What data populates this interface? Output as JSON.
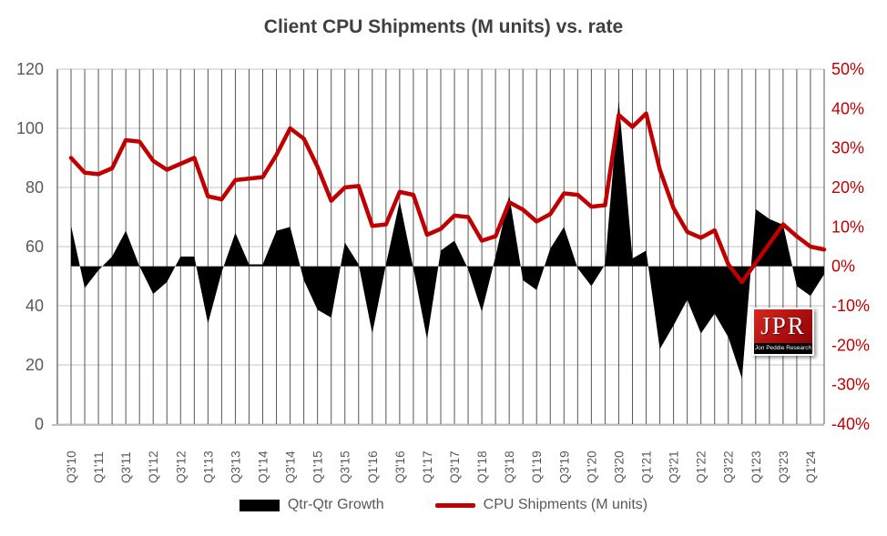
{
  "title": "Client CPU Shipments (M units) vs. rate",
  "colors": {
    "line": "#C00000",
    "area": "#000000",
    "title_text": "#404040",
    "left_axis_text": "#595959",
    "right_axis_text": "#C00000",
    "x_axis_text": "#595959",
    "h_gridline": "#D9D9D9",
    "v_gridline": "#555555",
    "axis_line": "#BFBFBF",
    "background": "#FFFFFF"
  },
  "legend": {
    "items": [
      {
        "label": "Qtr-Qtr Growth",
        "swatch": "black-area-swatch"
      },
      {
        "label": "CPU Shipments (M units)",
        "swatch": "red-line-swatch"
      }
    ]
  },
  "logo": {
    "text": "JPR",
    "subtext": "Jon Peddie Research"
  },
  "chart_data": {
    "type": "combo",
    "title": "Client CPU Shipments (M units) vs. rate",
    "categories": [
      "Q3'10",
      "Q4'10",
      "Q1'11",
      "Q2'11",
      "Q3'11",
      "Q4'11",
      "Q1'12",
      "Q2'12",
      "Q3'12",
      "Q4'12",
      "Q1'13",
      "Q2'13",
      "Q3'13",
      "Q4'13",
      "Q1'14",
      "Q2'14",
      "Q3'14",
      "Q4'14",
      "Q1'15",
      "Q2'15",
      "Q3'15",
      "Q4'15",
      "Q1'16",
      "Q2'16",
      "Q3'16",
      "Q4'16",
      "Q1'17",
      "Q2'17",
      "Q3'17",
      "Q4'17",
      "Q1'18",
      "Q2'18",
      "Q3'18",
      "Q4'18",
      "Q1'19",
      "Q2'19",
      "Q3'19",
      "Q4'19",
      "Q1'20",
      "Q2'20",
      "Q3'20",
      "Q4'20",
      "Q1'21",
      "Q2'21",
      "Q3'21",
      "Q4'21",
      "Q1'22",
      "Q2'22",
      "Q3'22",
      "Q4'22",
      "Q1'23",
      "Q2'23",
      "Q3'23",
      "Q4'23",
      "Q1'24",
      "Q2'24"
    ],
    "x_tick_labels": [
      "Q3'10",
      "Q1'11",
      "Q3'11",
      "Q1'12",
      "Q3'12",
      "Q1'13",
      "Q3'13",
      "Q1'14",
      "Q3'14",
      "Q1'15",
      "Q3'15",
      "Q1'16",
      "Q3'16",
      "Q1'17",
      "Q3'17",
      "Q1'18",
      "Q3'18",
      "Q1'19",
      "Q3'19",
      "Q1'20",
      "Q3'20",
      "Q1'21",
      "Q3'21",
      "Q1'22",
      "Q3'22",
      "Q1'23",
      "Q3'23",
      "Q1'24"
    ],
    "x_tick_every": 2,
    "series": [
      {
        "name": "Qtr-Qtr Growth",
        "type": "area",
        "axis": "right",
        "color": "#000000",
        "baseline": 0,
        "values": [
          10.3,
          -5.5,
          -1,
          2.5,
          9,
          0,
          -7,
          -4,
          2.5,
          2.5,
          -14.5,
          -1.5,
          8.5,
          0.5,
          0.5,
          9,
          10,
          -3.5,
          -11,
          -13,
          6,
          0.5,
          -17,
          0.5,
          16.5,
          -0.5,
          -18.5,
          4,
          6.5,
          -0.7,
          -11.5,
          2.5,
          18,
          -3.5,
          -6,
          4.5,
          10,
          -0.5,
          -5,
          0.5,
          42,
          2,
          4,
          -21,
          -15,
          -8.5,
          -17,
          -12,
          -18,
          -28.5,
          14.5,
          12,
          10.5,
          -5,
          -7.5,
          -2
        ]
      },
      {
        "name": "CPU Shipments (M units)",
        "type": "line",
        "axis": "left",
        "color": "#C00000",
        "values": [
          90,
          85,
          84.5,
          86.5,
          96,
          95.5,
          89,
          86,
          88,
          90,
          77,
          76,
          82.5,
          83,
          83.5,
          91,
          100,
          96.5,
          87,
          75.5,
          80,
          80.5,
          67,
          67.5,
          78.5,
          77.5,
          64,
          66,
          70.5,
          70,
          62,
          63.5,
          75,
          72.5,
          68.5,
          71,
          78,
          77.5,
          73.5,
          74,
          104.5,
          100.5,
          105,
          86,
          73,
          65,
          63,
          65.5,
          54,
          48,
          54.5,
          61,
          67.5,
          63.5,
          60,
          59
        ]
      }
    ],
    "left_axis": {
      "min": 0,
      "max": 120,
      "step": 20,
      "tick_labels": [
        "0",
        "20",
        "40",
        "60",
        "80",
        "100",
        "120"
      ]
    },
    "right_axis": {
      "min": -40,
      "max": 50,
      "step": 10,
      "tick_labels": [
        "-40%",
        "-30%",
        "-20%",
        "-10%",
        "0%",
        "10%",
        "20%",
        "30%",
        "40%",
        "50%"
      ]
    },
    "grid": {
      "horizontal": true,
      "vertical": true
    },
    "legend_position": "bottom"
  }
}
